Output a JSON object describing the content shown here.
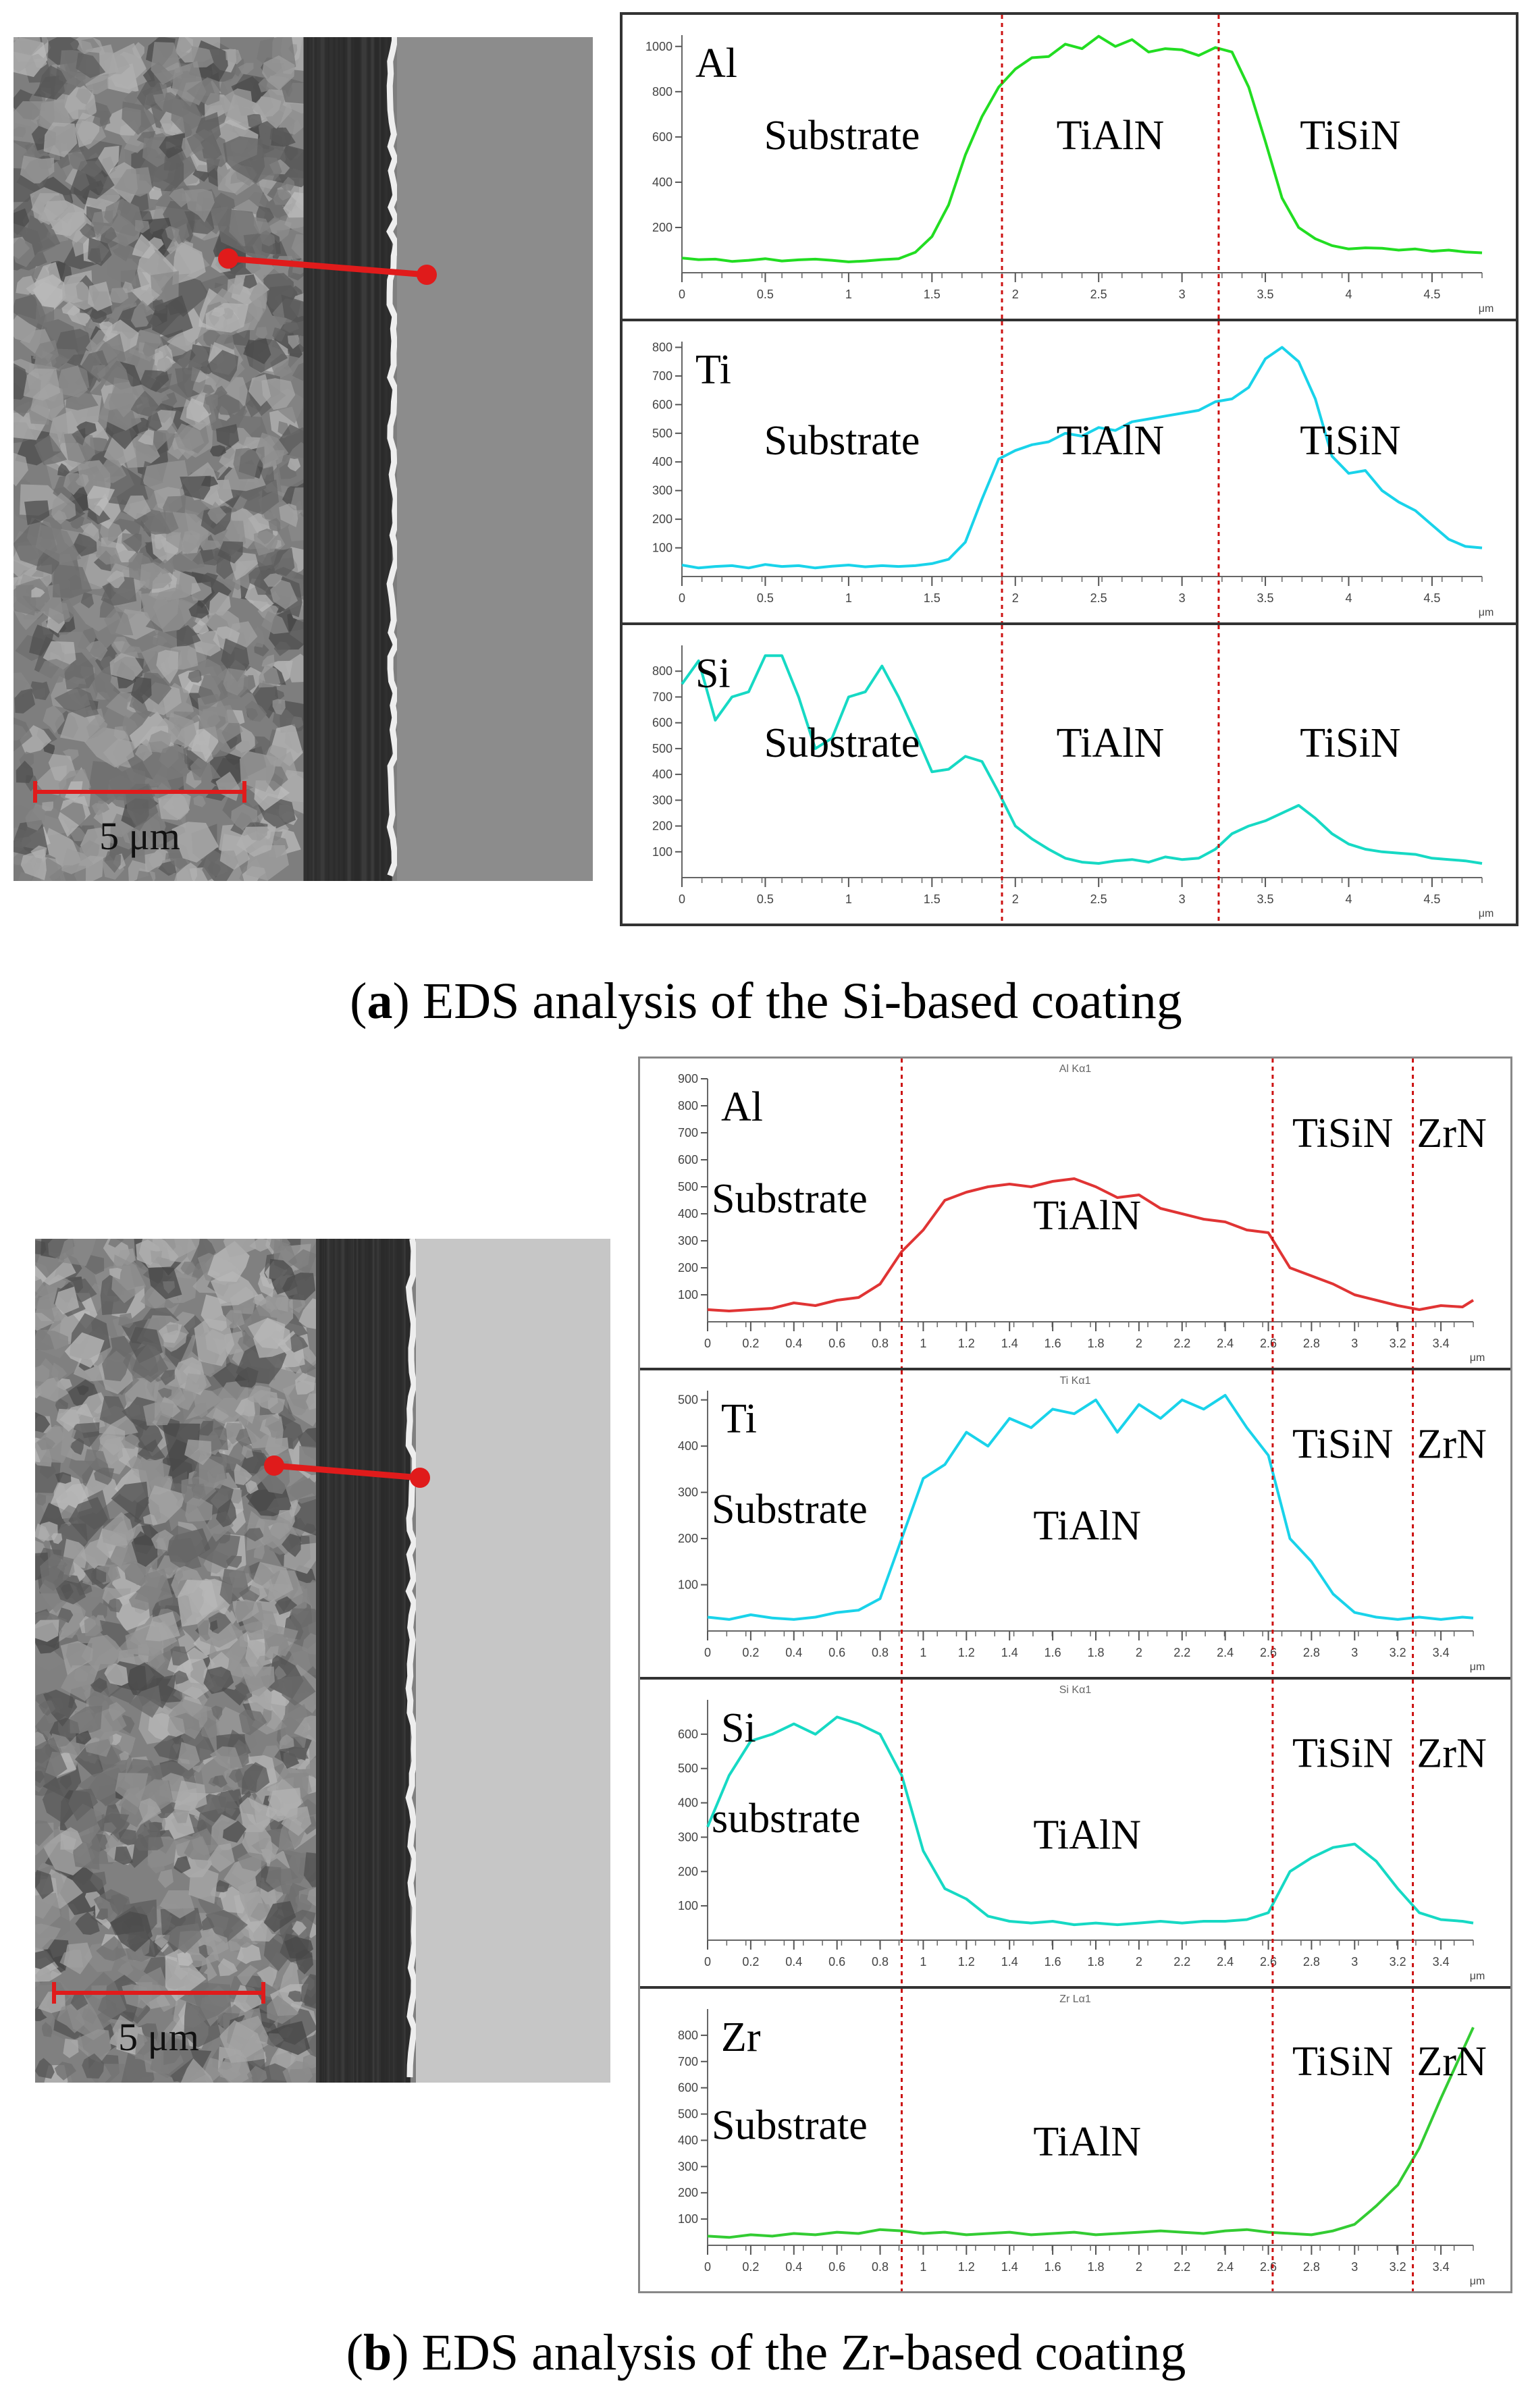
{
  "figure_a": {
    "caption_letter": "a",
    "caption_text": " EDS analysis of the Si-based coating",
    "scalebar_label": "5 μm",
    "line_color": "#e01b1b",
    "sem_base_color": "#7e7e7e"
  },
  "figure_b": {
    "caption_letter": "b",
    "caption_text": " EDS analysis of the Zr-based coating",
    "scalebar_label": "5 μm",
    "line_color": "#e01b1b",
    "sem_base_color": "#808080"
  },
  "colors": {
    "al_a": "#22dd22",
    "ti": "#19d3ea",
    "si": "#16d9c4",
    "al_b": "#e03434",
    "zr": "#33cc33",
    "divider": "#cc1111"
  },
  "chart_data": [
    {
      "type": "line",
      "figure": "a",
      "element_label": "Al",
      "series_header": "",
      "x_unit": "μm",
      "xlim": [
        0,
        4.8
      ],
      "ylim": [
        0,
        1050
      ],
      "x_ticks": [
        0,
        0.5,
        1,
        1.5,
        2,
        2.5,
        3,
        3.5,
        4,
        4.5
      ],
      "y_ticks": [
        200,
        400,
        600,
        800,
        1000
      ],
      "region_labels": [
        "Substrate",
        "TiAlN",
        "TiSiN"
      ],
      "boundaries": [
        1.92,
        3.22
      ],
      "x": [
        0,
        0.1,
        0.2,
        0.3,
        0.4,
        0.5,
        0.6,
        0.7,
        0.8,
        0.9,
        1.0,
        1.1,
        1.2,
        1.3,
        1.4,
        1.5,
        1.6,
        1.7,
        1.8,
        1.9,
        2.0,
        2.1,
        2.2,
        2.3,
        2.4,
        2.5,
        2.6,
        2.7,
        2.8,
        2.9,
        3.0,
        3.1,
        3.2,
        3.3,
        3.4,
        3.5,
        3.6,
        3.7,
        3.8,
        3.9,
        4.0,
        4.1,
        4.2,
        4.3,
        4.4,
        4.5,
        4.6,
        4.7,
        4.8
      ],
      "values": [
        65,
        58,
        60,
        50,
        55,
        62,
        52,
        57,
        60,
        55,
        48,
        52,
        58,
        62,
        90,
        160,
        300,
        520,
        690,
        820,
        900,
        950,
        955,
        1010,
        990,
        1045,
        1000,
        1030,
        975,
        990,
        985,
        960,
        995,
        975,
        820,
        580,
        330,
        200,
        150,
        120,
        105,
        110,
        108,
        100,
        105,
        95,
        100,
        92,
        88
      ]
    },
    {
      "type": "line",
      "figure": "a",
      "element_label": "Ti",
      "series_header": "",
      "x_unit": "μm",
      "xlim": [
        0,
        4.8
      ],
      "ylim": [
        0,
        820
      ],
      "x_ticks": [
        0,
        0.5,
        1,
        1.5,
        2,
        2.5,
        3,
        3.5,
        4,
        4.5
      ],
      "y_ticks": [
        100,
        200,
        300,
        400,
        500,
        600,
        700,
        800
      ],
      "region_labels": [
        "Substrate",
        "TiAlN",
        "TiSiN"
      ],
      "boundaries": [
        1.92,
        3.22
      ],
      "x": [
        0,
        0.1,
        0.2,
        0.3,
        0.4,
        0.5,
        0.6,
        0.7,
        0.8,
        0.9,
        1.0,
        1.1,
        1.2,
        1.3,
        1.4,
        1.5,
        1.6,
        1.7,
        1.8,
        1.9,
        2.0,
        2.1,
        2.2,
        2.3,
        2.4,
        2.5,
        2.6,
        2.7,
        2.8,
        2.9,
        3.0,
        3.1,
        3.2,
        3.3,
        3.4,
        3.5,
        3.6,
        3.7,
        3.8,
        3.9,
        4.0,
        4.1,
        4.2,
        4.3,
        4.4,
        4.5,
        4.6,
        4.7,
        4.8
      ],
      "values": [
        40,
        30,
        35,
        38,
        30,
        42,
        35,
        38,
        30,
        36,
        40,
        34,
        38,
        35,
        38,
        45,
        60,
        120,
        270,
        410,
        440,
        460,
        470,
        500,
        490,
        520,
        510,
        540,
        550,
        560,
        570,
        580,
        610,
        620,
        660,
        760,
        800,
        750,
        620,
        420,
        360,
        370,
        300,
        260,
        230,
        180,
        130,
        105,
        100
      ]
    },
    {
      "type": "line",
      "figure": "a",
      "element_label": "Si",
      "series_header": "",
      "x_unit": "μm",
      "xlim": [
        0,
        4.8
      ],
      "ylim": [
        0,
        900
      ],
      "x_ticks": [
        0,
        0.5,
        1,
        1.5,
        2,
        2.5,
        3,
        3.5,
        4,
        4.5
      ],
      "y_ticks": [
        100,
        200,
        300,
        400,
        500,
        600,
        700,
        800
      ],
      "region_labels": [
        "Substrate",
        "TiAlN",
        "TiSiN"
      ],
      "boundaries": [
        1.92,
        3.22
      ],
      "x": [
        0,
        0.1,
        0.2,
        0.3,
        0.4,
        0.5,
        0.6,
        0.7,
        0.8,
        0.9,
        1.0,
        1.1,
        1.2,
        1.3,
        1.4,
        1.5,
        1.6,
        1.7,
        1.8,
        1.9,
        2.0,
        2.1,
        2.2,
        2.3,
        2.4,
        2.5,
        2.6,
        2.7,
        2.8,
        2.9,
        3.0,
        3.1,
        3.2,
        3.3,
        3.4,
        3.5,
        3.6,
        3.7,
        3.8,
        3.9,
        4.0,
        4.1,
        4.2,
        4.3,
        4.4,
        4.5,
        4.6,
        4.7,
        4.8
      ],
      "values": [
        750,
        840,
        610,
        700,
        720,
        860,
        860,
        700,
        500,
        540,
        700,
        720,
        820,
        700,
        560,
        410,
        420,
        470,
        450,
        330,
        200,
        150,
        110,
        75,
        60,
        55,
        65,
        70,
        60,
        80,
        70,
        75,
        110,
        170,
        200,
        220,
        250,
        280,
        230,
        170,
        130,
        110,
        100,
        95,
        90,
        75,
        70,
        65,
        55
      ]
    },
    {
      "type": "line",
      "figure": "b",
      "element_label": "Al",
      "series_header": "Al Kα1",
      "x_unit": "μm",
      "xlim": [
        0,
        3.55
      ],
      "ylim": [
        0,
        900
      ],
      "x_ticks": [
        0,
        0.2,
        0.4,
        0.6,
        0.8,
        1,
        1.2,
        1.4,
        1.6,
        1.8,
        2,
        2.2,
        2.4,
        2.6,
        2.8,
        3,
        3.2,
        3.4
      ],
      "y_ticks": [
        100,
        200,
        300,
        400,
        500,
        600,
        700,
        800,
        900
      ],
      "region_labels": [
        "Substrate",
        "TiAlN",
        "TiSiN",
        "ZrN"
      ],
      "boundaries": [
        0.9,
        2.62,
        3.27
      ],
      "x": [
        0,
        0.1,
        0.2,
        0.3,
        0.4,
        0.5,
        0.6,
        0.7,
        0.8,
        0.9,
        1.0,
        1.1,
        1.2,
        1.3,
        1.4,
        1.5,
        1.6,
        1.7,
        1.8,
        1.9,
        2.0,
        2.1,
        2.2,
        2.3,
        2.4,
        2.5,
        2.6,
        2.7,
        2.8,
        2.9,
        3.0,
        3.1,
        3.2,
        3.3,
        3.4,
        3.5,
        3.55
      ],
      "values": [
        45,
        40,
        45,
        50,
        70,
        60,
        80,
        90,
        140,
        260,
        340,
        450,
        480,
        500,
        510,
        500,
        520,
        530,
        500,
        460,
        470,
        420,
        400,
        380,
        370,
        340,
        330,
        200,
        170,
        140,
        100,
        80,
        60,
        45,
        60,
        55,
        80
      ]
    },
    {
      "type": "line",
      "figure": "b",
      "element_label": "Ti",
      "series_header": "Ti Kα1",
      "x_unit": "μm",
      "xlim": [
        0,
        3.55
      ],
      "ylim": [
        0,
        520
      ],
      "x_ticks": [
        0,
        0.2,
        0.4,
        0.6,
        0.8,
        1,
        1.2,
        1.4,
        1.6,
        1.8,
        2,
        2.2,
        2.4,
        2.6,
        2.8,
        3,
        3.2,
        3.4
      ],
      "y_ticks": [
        100,
        200,
        300,
        400,
        500
      ],
      "region_labels": [
        "Substrate",
        "TiAlN",
        "TiSiN",
        "ZrN"
      ],
      "boundaries": [
        0.9,
        2.62,
        3.27
      ],
      "x": [
        0,
        0.1,
        0.2,
        0.3,
        0.4,
        0.5,
        0.6,
        0.7,
        0.8,
        0.9,
        1.0,
        1.1,
        1.2,
        1.3,
        1.4,
        1.5,
        1.6,
        1.7,
        1.8,
        1.9,
        2.0,
        2.1,
        2.2,
        2.3,
        2.4,
        2.5,
        2.6,
        2.7,
        2.8,
        2.9,
        3.0,
        3.1,
        3.2,
        3.3,
        3.4,
        3.5,
        3.55
      ],
      "values": [
        30,
        25,
        35,
        28,
        25,
        30,
        40,
        45,
        70,
        200,
        330,
        360,
        430,
        400,
        460,
        440,
        480,
        470,
        500,
        430,
        490,
        460,
        500,
        480,
        510,
        440,
        380,
        200,
        150,
        80,
        40,
        30,
        25,
        30,
        25,
        30,
        28
      ]
    },
    {
      "type": "line",
      "figure": "b",
      "element_label": "Si",
      "series_header": "Si Kα1",
      "x_unit": "μm",
      "xlim": [
        0,
        3.55
      ],
      "ylim": [
        0,
        700
      ],
      "x_ticks": [
        0,
        0.2,
        0.4,
        0.6,
        0.8,
        1,
        1.2,
        1.4,
        1.6,
        1.8,
        2,
        2.2,
        2.4,
        2.6,
        2.8,
        3,
        3.2,
        3.4
      ],
      "y_ticks": [
        100,
        200,
        300,
        400,
        500,
        600
      ],
      "region_labels": [
        "substrate",
        "TiAlN",
        "TiSiN",
        "ZrN"
      ],
      "boundaries": [
        0.9,
        2.62,
        3.27
      ],
      "x": [
        0,
        0.1,
        0.2,
        0.3,
        0.4,
        0.5,
        0.6,
        0.7,
        0.8,
        0.9,
        1.0,
        1.1,
        1.2,
        1.3,
        1.4,
        1.5,
        1.6,
        1.7,
        1.8,
        1.9,
        2.0,
        2.1,
        2.2,
        2.3,
        2.4,
        2.5,
        2.6,
        2.7,
        2.8,
        2.9,
        3.0,
        3.1,
        3.2,
        3.3,
        3.4,
        3.5,
        3.55
      ],
      "values": [
        330,
        480,
        580,
        600,
        630,
        600,
        650,
        630,
        600,
        480,
        260,
        150,
        120,
        70,
        55,
        50,
        55,
        45,
        50,
        45,
        50,
        55,
        50,
        55,
        55,
        60,
        80,
        200,
        240,
        270,
        280,
        230,
        150,
        80,
        60,
        55,
        50
      ]
    },
    {
      "type": "line",
      "figure": "b",
      "element_label": "Zr",
      "series_header": "Zr Lα1",
      "x_unit": "μm",
      "xlim": [
        0,
        3.55
      ],
      "ylim": [
        0,
        900
      ],
      "x_ticks": [
        0,
        0.2,
        0.4,
        0.6,
        0.8,
        1,
        1.2,
        1.4,
        1.6,
        1.8,
        2,
        2.2,
        2.4,
        2.6,
        2.8,
        3,
        3.2,
        3.4
      ],
      "y_ticks": [
        100,
        200,
        300,
        400,
        500,
        600,
        700,
        800
      ],
      "region_labels": [
        "Substrate",
        "TiAlN",
        "TiSiN",
        "ZrN"
      ],
      "boundaries": [
        0.9,
        2.62,
        3.27
      ],
      "x": [
        0,
        0.1,
        0.2,
        0.3,
        0.4,
        0.5,
        0.6,
        0.7,
        0.8,
        0.9,
        1.0,
        1.1,
        1.2,
        1.3,
        1.4,
        1.5,
        1.6,
        1.7,
        1.8,
        1.9,
        2.0,
        2.1,
        2.2,
        2.3,
        2.4,
        2.5,
        2.6,
        2.7,
        2.8,
        2.9,
        3.0,
        3.1,
        3.2,
        3.3,
        3.4,
        3.5,
        3.55
      ],
      "values": [
        35,
        30,
        40,
        35,
        45,
        40,
        50,
        45,
        60,
        55,
        45,
        50,
        40,
        45,
        50,
        40,
        45,
        50,
        40,
        45,
        50,
        55,
        50,
        45,
        55,
        60,
        50,
        45,
        40,
        55,
        80,
        150,
        230,
        370,
        560,
        740,
        830
      ]
    }
  ]
}
